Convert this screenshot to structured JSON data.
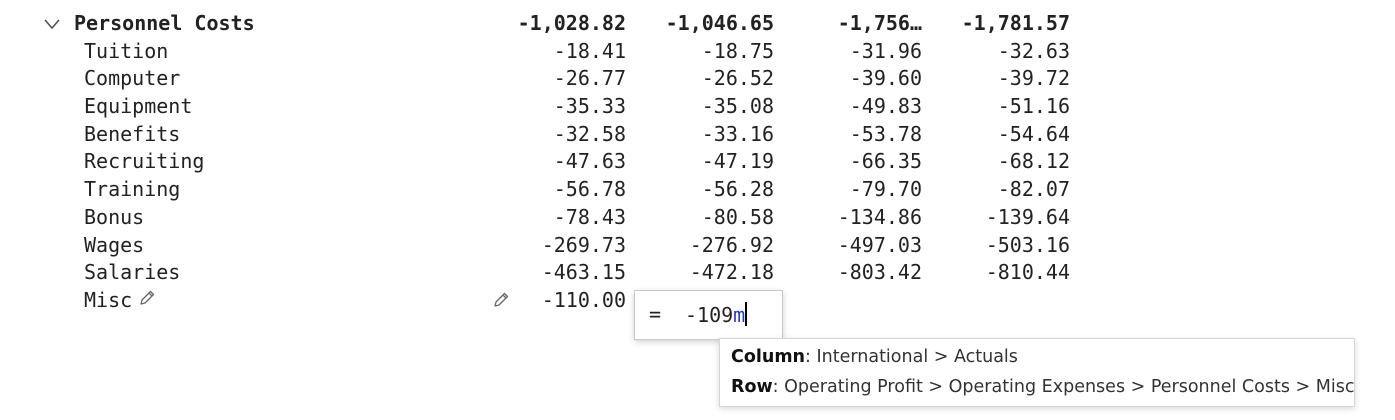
{
  "group": {
    "label": "Personnel Costs",
    "values": [
      "-1,028.82",
      "-1,046.65",
      "-1,756…",
      "-1,781.57"
    ],
    "expanded_icon": "chevron-down-icon"
  },
  "rows": [
    {
      "label": "Tuition",
      "values": [
        "-18.41",
        "-18.75",
        "-31.96",
        "-32.63"
      ]
    },
    {
      "label": "Computer",
      "values": [
        "-26.77",
        "-26.52",
        "-39.60",
        "-39.72"
      ]
    },
    {
      "label": "Equipment",
      "values": [
        "-35.33",
        "-35.08",
        "-49.83",
        "-51.16"
      ]
    },
    {
      "label": "Benefits",
      "values": [
        "-32.58",
        "-33.16",
        "-53.78",
        "-54.64"
      ]
    },
    {
      "label": "Recruiting",
      "values": [
        "-47.63",
        "-47.19",
        "-66.35",
        "-68.12"
      ]
    },
    {
      "label": "Training",
      "values": [
        "-56.78",
        "-56.28",
        "-79.70",
        "-82.07"
      ]
    },
    {
      "label": "Bonus",
      "values": [
        "-78.43",
        "-80.58",
        "-134.86",
        "-139.64"
      ]
    },
    {
      "label": "Wages",
      "values": [
        "-269.73",
        "-276.92",
        "-497.03",
        "-503.16"
      ]
    },
    {
      "label": "Salaries",
      "values": [
        "-463.15",
        "-472.18",
        "-803.42",
        "-810.44"
      ]
    }
  ],
  "misc": {
    "label": "Misc",
    "value": "-110.00",
    "icon": "pencil-icon"
  },
  "editor": {
    "equals": "=",
    "value": "-109",
    "suffix": "m",
    "suffix_color": "#1f3fbf"
  },
  "tooltip": {
    "column_label": "Column",
    "column_value": ": International > Actuals",
    "row_label": "Row",
    "row_value": ": Operating Profit > Operating Expenses > Personnel Costs > Misc"
  }
}
